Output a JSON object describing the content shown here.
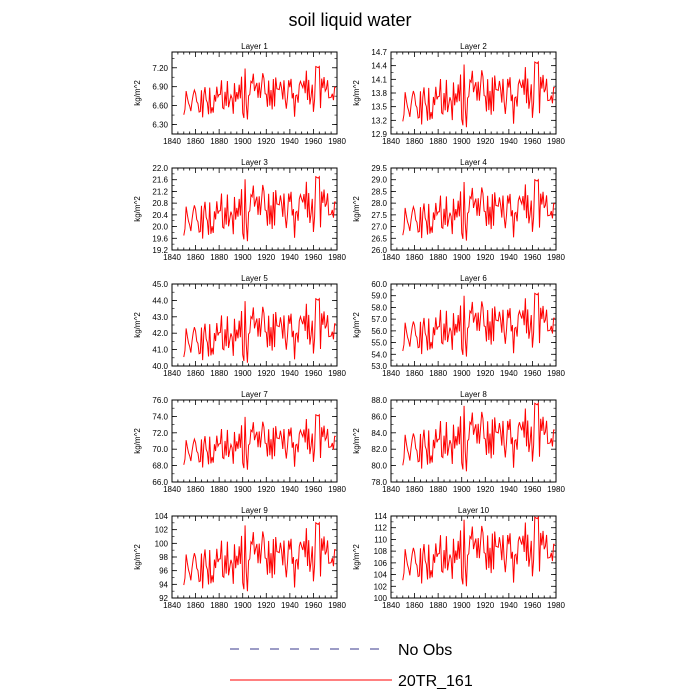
{
  "title": "soil liquid water",
  "legend": [
    {
      "label": "No Obs",
      "color": "#3a3a8c",
      "style": "dashed"
    },
    {
      "label": "20TR_161",
      "color": "#ff0000",
      "style": "solid"
    }
  ],
  "chart_data": [
    {
      "type": "line",
      "title": "Layer 1",
      "ylabel": "kg/m^2",
      "xlim": [
        1840,
        1980
      ],
      "ylim": [
        6.15,
        7.45
      ],
      "xticks": [
        "1840",
        "1860",
        "1880",
        "1900",
        "1920",
        "1940",
        "1960",
        "1980"
      ],
      "yticks": [
        6.3,
        6.6,
        6.9,
        7.2
      ],
      "ytick_labels": [
        "6.30",
        "6.60",
        "6.90",
        "7.20"
      ],
      "series": [
        {
          "color": "#ff0000",
          "x_start": 1850,
          "x_end": 1979,
          "min": 6.38,
          "max": 7.22
        }
      ]
    },
    {
      "type": "line",
      "title": "Layer 2",
      "ylabel": "kg/m^2",
      "xlim": [
        1840,
        1980
      ],
      "ylim": [
        12.9,
        14.7
      ],
      "xticks": [
        "1840",
        "1860",
        "1880",
        "1900",
        "1920",
        "1940",
        "1960",
        "1980"
      ],
      "yticks": [
        12.9,
        13.2,
        13.5,
        13.8,
        14.1,
        14.4,
        14.7
      ],
      "ytick_labels": [
        "12.9",
        "13.2",
        "13.5",
        "13.8",
        "14.1",
        "14.4",
        "14.7"
      ],
      "series": [
        {
          "color": "#ff0000",
          "x_start": 1850,
          "x_end": 1979,
          "min": 13.05,
          "max": 14.48
        }
      ]
    },
    {
      "type": "line",
      "title": "Layer 3",
      "ylabel": "kg/m^2",
      "xlim": [
        1840,
        1980
      ],
      "ylim": [
        19.2,
        22.0
      ],
      "xticks": [
        "1840",
        "1860",
        "1880",
        "1900",
        "1920",
        "1940",
        "1960",
        "1980"
      ],
      "yticks": [
        19.2,
        19.6,
        20.0,
        20.4,
        20.8,
        21.2,
        21.6,
        22.0
      ],
      "ytick_labels": [
        "19.2",
        "19.6",
        "20.0",
        "20.4",
        "20.8",
        "21.2",
        "21.6",
        "22.0"
      ],
      "series": [
        {
          "color": "#ff0000",
          "x_start": 1850,
          "x_end": 1979,
          "min": 19.5,
          "max": 21.7
        }
      ]
    },
    {
      "type": "line",
      "title": "Layer 4",
      "ylabel": "kg/m^2",
      "xlim": [
        1840,
        1980
      ],
      "ylim": [
        26.0,
        29.5
      ],
      "xticks": [
        "1840",
        "1860",
        "1880",
        "1900",
        "1920",
        "1940",
        "1960",
        "1980"
      ],
      "yticks": [
        26.0,
        26.5,
        27.0,
        27.5,
        28.0,
        28.5,
        29.0,
        29.5
      ],
      "ytick_labels": [
        "26.0",
        "26.5",
        "27.0",
        "27.5",
        "28.0",
        "28.5",
        "29.0",
        "29.5"
      ],
      "series": [
        {
          "color": "#ff0000",
          "x_start": 1850,
          "x_end": 1979,
          "min": 26.4,
          "max": 29.0
        }
      ]
    },
    {
      "type": "line",
      "title": "Layer 5",
      "ylabel": "kg/m^2",
      "xlim": [
        1840,
        1980
      ],
      "ylim": [
        40.0,
        45.0
      ],
      "xticks": [
        "1840",
        "1860",
        "1880",
        "1900",
        "1920",
        "1940",
        "1960",
        "1980"
      ],
      "yticks": [
        40.0,
        41.0,
        42.0,
        43.0,
        44.0,
        45.0
      ],
      "ytick_labels": [
        "40.0",
        "41.0",
        "42.0",
        "43.0",
        "44.0",
        "45.0"
      ],
      "series": [
        {
          "color": "#ff0000",
          "x_start": 1850,
          "x_end": 1979,
          "min": 40.2,
          "max": 44.1
        }
      ]
    },
    {
      "type": "line",
      "title": "Layer 6",
      "ylabel": "kg/m^2",
      "xlim": [
        1840,
        1980
      ],
      "ylim": [
        53.0,
        60.0
      ],
      "xticks": [
        "1840",
        "1860",
        "1880",
        "1900",
        "1920",
        "1940",
        "1960",
        "1980"
      ],
      "yticks": [
        53.0,
        54.0,
        55.0,
        56.0,
        57.0,
        58.0,
        59.0,
        60.0
      ],
      "ytick_labels": [
        "53.0",
        "54.0",
        "55.0",
        "56.0",
        "57.0",
        "58.0",
        "59.0",
        "60.0"
      ],
      "series": [
        {
          "color": "#ff0000",
          "x_start": 1850,
          "x_end": 1979,
          "min": 53.8,
          "max": 59.2
        }
      ]
    },
    {
      "type": "line",
      "title": "Layer 7",
      "ylabel": "kg/m^2",
      "xlim": [
        1840,
        1980
      ],
      "ylim": [
        66.0,
        76.0
      ],
      "xticks": [
        "1840",
        "1860",
        "1880",
        "1900",
        "1920",
        "1940",
        "1960",
        "1980"
      ],
      "yticks": [
        66.0,
        68.0,
        70.0,
        72.0,
        74.0,
        76.0
      ],
      "ytick_labels": [
        "66.0",
        "68.0",
        "70.0",
        "72.0",
        "74.0",
        "76.0"
      ],
      "series": [
        {
          "color": "#ff0000",
          "x_start": 1850,
          "x_end": 1979,
          "min": 67.5,
          "max": 74.2
        }
      ]
    },
    {
      "type": "line",
      "title": "Layer 8",
      "ylabel": "kg/m^2",
      "xlim": [
        1840,
        1980
      ],
      "ylim": [
        78.0,
        88.0
      ],
      "xticks": [
        "1840",
        "1860",
        "1880",
        "1900",
        "1920",
        "1940",
        "1960",
        "1980"
      ],
      "yticks": [
        78.0,
        80.0,
        82.0,
        84.0,
        86.0,
        88.0
      ],
      "ytick_labels": [
        "78.0",
        "80.0",
        "82.0",
        "84.0",
        "86.0",
        "88.0"
      ],
      "series": [
        {
          "color": "#ff0000",
          "x_start": 1850,
          "x_end": 1979,
          "min": 79.3,
          "max": 87.6
        }
      ]
    },
    {
      "type": "line",
      "title": "Layer 9",
      "ylabel": "kg/m^2",
      "xlim": [
        1840,
        1980
      ],
      "ylim": [
        92,
        104
      ],
      "xticks": [
        "1840",
        "1860",
        "1880",
        "1900",
        "1920",
        "1940",
        "1960",
        "1980"
      ],
      "yticks": [
        92,
        94,
        96,
        98,
        100,
        102,
        104
      ],
      "ytick_labels": [
        "92",
        "94",
        "96",
        "98",
        "100",
        "102",
        "104"
      ],
      "series": [
        {
          "color": "#ff0000",
          "x_start": 1850,
          "x_end": 1979,
          "min": 93.0,
          "max": 103.0
        }
      ]
    },
    {
      "type": "line",
      "title": "Layer 10",
      "ylabel": "kg/m^2",
      "xlim": [
        1840,
        1980
      ],
      "ylim": [
        100,
        114
      ],
      "xticks": [
        "1840",
        "1860",
        "1880",
        "1900",
        "1920",
        "1940",
        "1960",
        "1980"
      ],
      "yticks": [
        100,
        102,
        104,
        106,
        108,
        110,
        112,
        114
      ],
      "ytick_labels": [
        "100",
        "102",
        "104",
        "106",
        "108",
        "110",
        "112",
        "114"
      ],
      "series": [
        {
          "color": "#ff0000",
          "x_start": 1850,
          "x_end": 1979,
          "min": 102.0,
          "max": 113.8
        }
      ]
    }
  ]
}
